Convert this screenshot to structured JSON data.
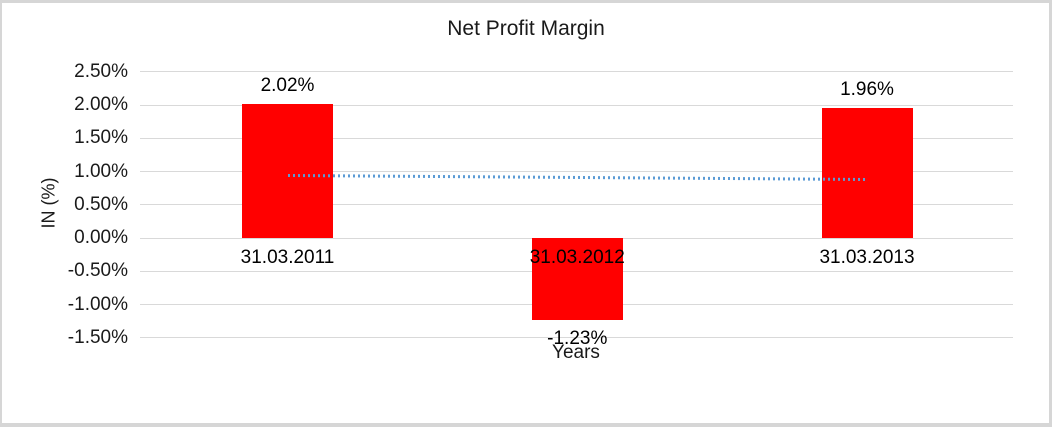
{
  "chart_data": {
    "type": "bar",
    "title": "Net Profit Margin",
    "xlabel": "Years",
    "ylabel": "IN (%)",
    "categories": [
      "31.03.2011",
      "31.03.2012",
      "31.03.2013"
    ],
    "values": [
      2.02,
      -1.23,
      1.96
    ],
    "data_labels": [
      "2.02%",
      "-1.23%",
      "1.96%"
    ],
    "ylim": [
      -1.5,
      2.5
    ],
    "ytick_step": 0.5,
    "ytick_labels": [
      "2.50%",
      "2.00%",
      "1.50%",
      "1.00%",
      "0.50%",
      "0.00%",
      "-0.50%",
      "-1.00%",
      "-1.50%"
    ],
    "grid": true,
    "legend": "none",
    "colors": {
      "bar": "#FF0000",
      "gridline": "#D9D9D9",
      "trendline": "#5B9BD5",
      "text": "#1A1A1A",
      "frame_border": "#D6D6D6",
      "background": "#FFFFFF"
    },
    "trendline": {
      "style": "dotted",
      "color": "#5B9BD5",
      "start_value": 0.95,
      "end_value": 0.89
    }
  }
}
